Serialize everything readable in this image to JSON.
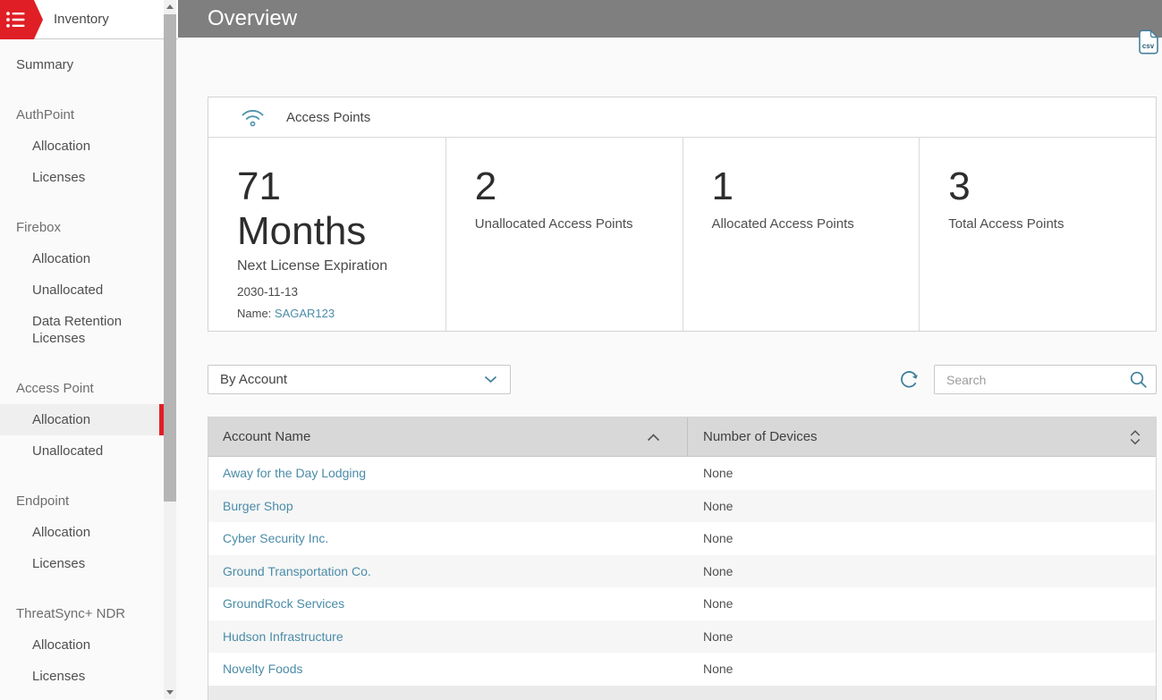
{
  "colors": {
    "accent_red": "#e01e25",
    "link_teal": "#4a8ca8",
    "header_gray": "#7f7f7f",
    "icon_teal": "#3e7f9b"
  },
  "sidebar": {
    "title": "Inventory",
    "items": [
      {
        "label": "Summary",
        "type": "item",
        "indent": false,
        "selected": false
      },
      {
        "label": "AuthPoint",
        "type": "group"
      },
      {
        "label": "Allocation",
        "type": "item",
        "indent": true,
        "selected": false
      },
      {
        "label": "Licenses",
        "type": "item",
        "indent": true,
        "selected": false
      },
      {
        "label": "Firebox",
        "type": "group"
      },
      {
        "label": "Allocation",
        "type": "item",
        "indent": true,
        "selected": false
      },
      {
        "label": "Unallocated",
        "type": "item",
        "indent": true,
        "selected": false
      },
      {
        "label": "Data Retention Licenses",
        "type": "item",
        "indent": true,
        "selected": false
      },
      {
        "label": "Access Point",
        "type": "group"
      },
      {
        "label": "Allocation",
        "type": "item",
        "indent": true,
        "selected": true
      },
      {
        "label": "Unallocated",
        "type": "item",
        "indent": true,
        "selected": false
      },
      {
        "label": "Endpoint",
        "type": "group"
      },
      {
        "label": "Allocation",
        "type": "item",
        "indent": true,
        "selected": false
      },
      {
        "label": "Licenses",
        "type": "item",
        "indent": true,
        "selected": false
      },
      {
        "label": "ThreatSync+ NDR",
        "type": "group"
      },
      {
        "label": "Allocation",
        "type": "item",
        "indent": true,
        "selected": false
      },
      {
        "label": "Licenses",
        "type": "item",
        "indent": true,
        "selected": false
      }
    ]
  },
  "header": {
    "title": "Overview"
  },
  "export": {
    "csv_icon_label": "csv"
  },
  "card": {
    "title": "Access Points",
    "stats": [
      {
        "value": "71",
        "unit": "Months",
        "label": "Next License Expiration",
        "date": "2030-11-13",
        "name_prefix": "Name: ",
        "name_link": "SAGAR123"
      },
      {
        "value": "2",
        "label": "Unallocated Access Points"
      },
      {
        "value": "1",
        "label": "Allocated Access Points"
      },
      {
        "value": "3",
        "label": "Total Access Points"
      }
    ]
  },
  "filters": {
    "group_by_selected": "By Account",
    "search_placeholder": "Search"
  },
  "table": {
    "columns": [
      "Account Name",
      "Number of Devices"
    ],
    "rows": [
      {
        "account": "Away for the Day Lodging",
        "devices": "None"
      },
      {
        "account": "Burger Shop",
        "devices": "None"
      },
      {
        "account": "Cyber Security Inc.",
        "devices": "None"
      },
      {
        "account": "Ground Transportation Co.",
        "devices": "None"
      },
      {
        "account": "GroundRock Services",
        "devices": "None"
      },
      {
        "account": "Hudson Infrastructure",
        "devices": "None"
      },
      {
        "account": "Novelty Foods",
        "devices": "None"
      }
    ]
  }
}
